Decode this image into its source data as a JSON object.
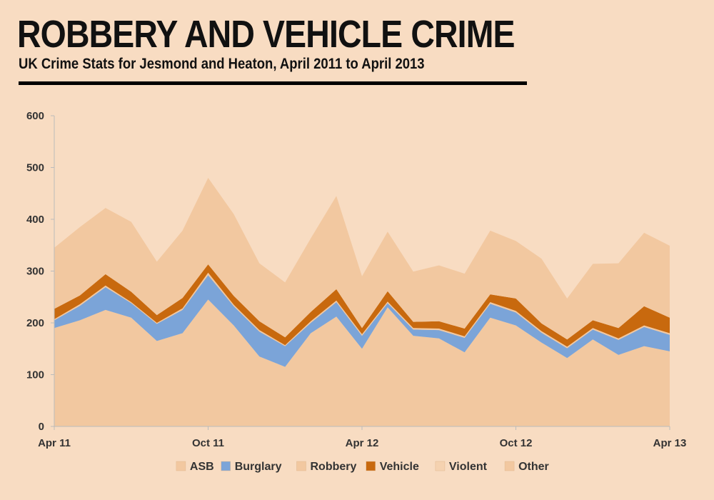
{
  "title": "ROBBERY AND VEHICLE CRIME",
  "subtitle": "UK Crime Stats for Jesmond and Heaton, April 2011 to April 2013",
  "chart_data": {
    "type": "area",
    "stacked": true,
    "x": [
      "Apr 11",
      "May 11",
      "Jun 11",
      "Jul 11",
      "Aug 11",
      "Sep 11",
      "Oct 11",
      "Nov 11",
      "Dec 11",
      "Jan 12",
      "Feb 12",
      "Mar 12",
      "Apr 12",
      "May 12",
      "Jun 12",
      "Jul 12",
      "Aug 12",
      "Sep 12",
      "Oct 12",
      "Nov 12",
      "Dec 12",
      "Jan 13",
      "Feb 13",
      "Mar 13",
      "Apr 13"
    ],
    "x_tick_labels": [
      "Apr 11",
      "Oct 11",
      "Apr 12",
      "Oct 12",
      "Apr 13"
    ],
    "x_tick_indices": [
      0,
      6,
      12,
      18,
      24
    ],
    "ylim": [
      0,
      600
    ],
    "y_ticks": [
      0,
      100,
      200,
      300,
      400,
      500,
      600
    ],
    "grid": false,
    "legend_position": "bottom",
    "series": [
      {
        "name": "ASB",
        "color": "#F2C8A0",
        "values": [
          190,
          205,
          225,
          210,
          165,
          180,
          245,
          195,
          135,
          115,
          180,
          212,
          150,
          230,
          175,
          170,
          143,
          210,
          195,
          162,
          132,
          168,
          138,
          155,
          145
        ]
      },
      {
        "name": "Burglary",
        "color": "#7BA4D8",
        "values": [
          15,
          28,
          44,
          28,
          33,
          45,
          47,
          37,
          48,
          40,
          20,
          28,
          25,
          8,
          12,
          16,
          28,
          27,
          25,
          19,
          19,
          19,
          29,
          37,
          32
        ]
      },
      {
        "name": "Robbery",
        "color": "#F2C8A0",
        "values": [
          2,
          3,
          3,
          2,
          2,
          3,
          5,
          3,
          3,
          2,
          3,
          3,
          3,
          3,
          3,
          3,
          3,
          3,
          3,
          3,
          3,
          3,
          3,
          3,
          3
        ]
      },
      {
        "name": "Vehicle",
        "color": "#C8690E",
        "values": [
          20,
          17,
          22,
          20,
          15,
          20,
          16,
          17,
          17,
          15,
          18,
          22,
          12,
          20,
          12,
          14,
          15,
          15,
          24,
          15,
          14,
          15,
          20,
          37,
          30
        ]
      },
      {
        "name": "Violent",
        "color": "#F5D2B0",
        "values": [
          0,
          0,
          0,
          0,
          0,
          0,
          0,
          0,
          0,
          0,
          0,
          0,
          0,
          0,
          0,
          0,
          0,
          0,
          0,
          0,
          0,
          0,
          0,
          0,
          0
        ]
      },
      {
        "name": "Other",
        "color": "#F2C8A0",
        "values": [
          118,
          132,
          128,
          135,
          103,
          130,
          167,
          158,
          112,
          106,
          142,
          180,
          100,
          115,
          97,
          108,
          106,
          123,
          111,
          125,
          79,
          109,
          125,
          142,
          139
        ]
      }
    ]
  }
}
